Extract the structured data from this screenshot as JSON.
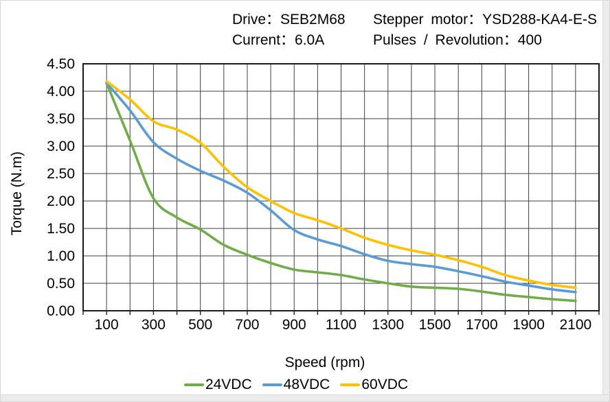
{
  "header": {
    "drive": "Drive：SEB2M68",
    "motor": "Stepper motor：YSD288-KA4-E-S",
    "current": "Current：6.0A",
    "pulses": "Pulses / Revolution：400"
  },
  "chart_data": {
    "type": "line",
    "x": [
      100,
      200,
      300,
      400,
      500,
      600,
      700,
      800,
      900,
      1000,
      1100,
      1200,
      1300,
      1400,
      1500,
      1600,
      1700,
      1800,
      1900,
      2000,
      2100
    ],
    "series": [
      {
        "name": "24VDC",
        "color": "#70AD47",
        "values": [
          4.15,
          3.1,
          2.05,
          1.7,
          1.48,
          1.2,
          1.02,
          0.87,
          0.75,
          0.7,
          0.65,
          0.57,
          0.5,
          0.44,
          0.42,
          0.4,
          0.35,
          0.29,
          0.25,
          0.21,
          0.18
        ]
      },
      {
        "name": "48VDC",
        "color": "#5B9BD5",
        "values": [
          4.15,
          3.65,
          3.07,
          2.77,
          2.55,
          2.37,
          2.15,
          1.83,
          1.47,
          1.3,
          1.18,
          1.03,
          0.91,
          0.85,
          0.8,
          0.72,
          0.63,
          0.53,
          0.46,
          0.39,
          0.34
        ]
      },
      {
        "name": "60VDC",
        "color": "#FFC000",
        "values": [
          4.18,
          3.85,
          3.45,
          3.3,
          3.06,
          2.62,
          2.25,
          2.0,
          1.78,
          1.65,
          1.5,
          1.33,
          1.2,
          1.1,
          1.02,
          0.92,
          0.8,
          0.65,
          0.55,
          0.47,
          0.42
        ]
      }
    ],
    "xlabel": "Speed  (rpm)",
    "ylabel": "Torque (N.m)",
    "xlim": [
      0,
      2200
    ],
    "ylim": [
      0,
      4.5
    ],
    "x_grid_step": 100,
    "y_grid_step": 0.5,
    "grid": true,
    "x_tick_labels": [
      "100",
      "300",
      "500",
      "700",
      "900",
      "1100",
      "1300",
      "1500",
      "1700",
      "1900",
      "2100"
    ],
    "x_tick_values": [
      100,
      300,
      500,
      700,
      900,
      1100,
      1300,
      1500,
      1700,
      1900,
      2100
    ],
    "y_tick_labels": [
      "0.00",
      "0.50",
      "1.00",
      "1.50",
      "2.00",
      "2.50",
      "3.00",
      "3.50",
      "4.00",
      "4.50"
    ],
    "y_tick_values": [
      0,
      0.5,
      1.0,
      1.5,
      2.0,
      2.5,
      3.0,
      3.5,
      4.0,
      4.5
    ],
    "legend_position": "bottom",
    "grid_color": "#3f3f3f",
    "border_color": "#1a1a1a",
    "text_color": "#000000"
  }
}
